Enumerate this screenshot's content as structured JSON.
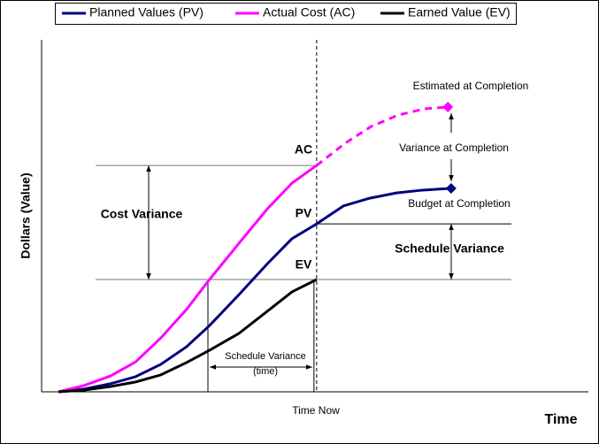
{
  "chart_data": {
    "type": "line",
    "x_label": "Time",
    "y_label": "Dollars (Value)",
    "xlim": [
      0,
      100
    ],
    "ylim": [
      0,
      100
    ],
    "x": [
      3.1,
      7.8,
      12.6,
      17.2,
      21.8,
      26.5,
      30.7,
      36.1,
      41.3,
      45.8,
      50.3,
      55.2,
      60.0,
      64.9,
      69.7,
      74.9
    ],
    "series": [
      {
        "name": "Planned Values (PV)",
        "color": "#000080",
        "values": [
          0,
          0.8,
          2.3,
          4.3,
          7.8,
          12.8,
          18.8,
          27.6,
          36.4,
          43.5,
          47.7,
          52.8,
          55.0,
          56.5,
          57.3,
          57.8
        ]
      },
      {
        "name": "Actual Cost (AC)",
        "color": "#ff00ff",
        "values": [
          0,
          1.8,
          4.5,
          8.5,
          15.3,
          23.4,
          31.9,
          42.2,
          52.0,
          59.3,
          64.3,
          null,
          null,
          null,
          null,
          null
        ]
      },
      {
        "name": "Earned Value (EV)",
        "color": "#000000",
        "values": [
          0,
          0.5,
          1.5,
          2.8,
          4.8,
          8.3,
          11.8,
          16.6,
          22.9,
          28.4,
          31.9,
          null,
          null,
          null,
          null,
          null
        ]
      }
    ],
    "forecast": {
      "color": "#ff00ff",
      "dashed": true,
      "x": [
        50.3,
        55.5,
        60.3,
        65.2,
        70.0,
        74.3
      ],
      "values": [
        64.3,
        70.6,
        75.4,
        78.6,
        80.4,
        80.9
      ]
    },
    "annotations": [
      "AC",
      "PV",
      "EV",
      "Cost Variance",
      "Schedule Variance",
      "Schedule Variance",
      "(time)",
      "Estimated at Completion",
      "Variance at Completion",
      "Budget at Completion",
      "Time Now"
    ]
  }
}
